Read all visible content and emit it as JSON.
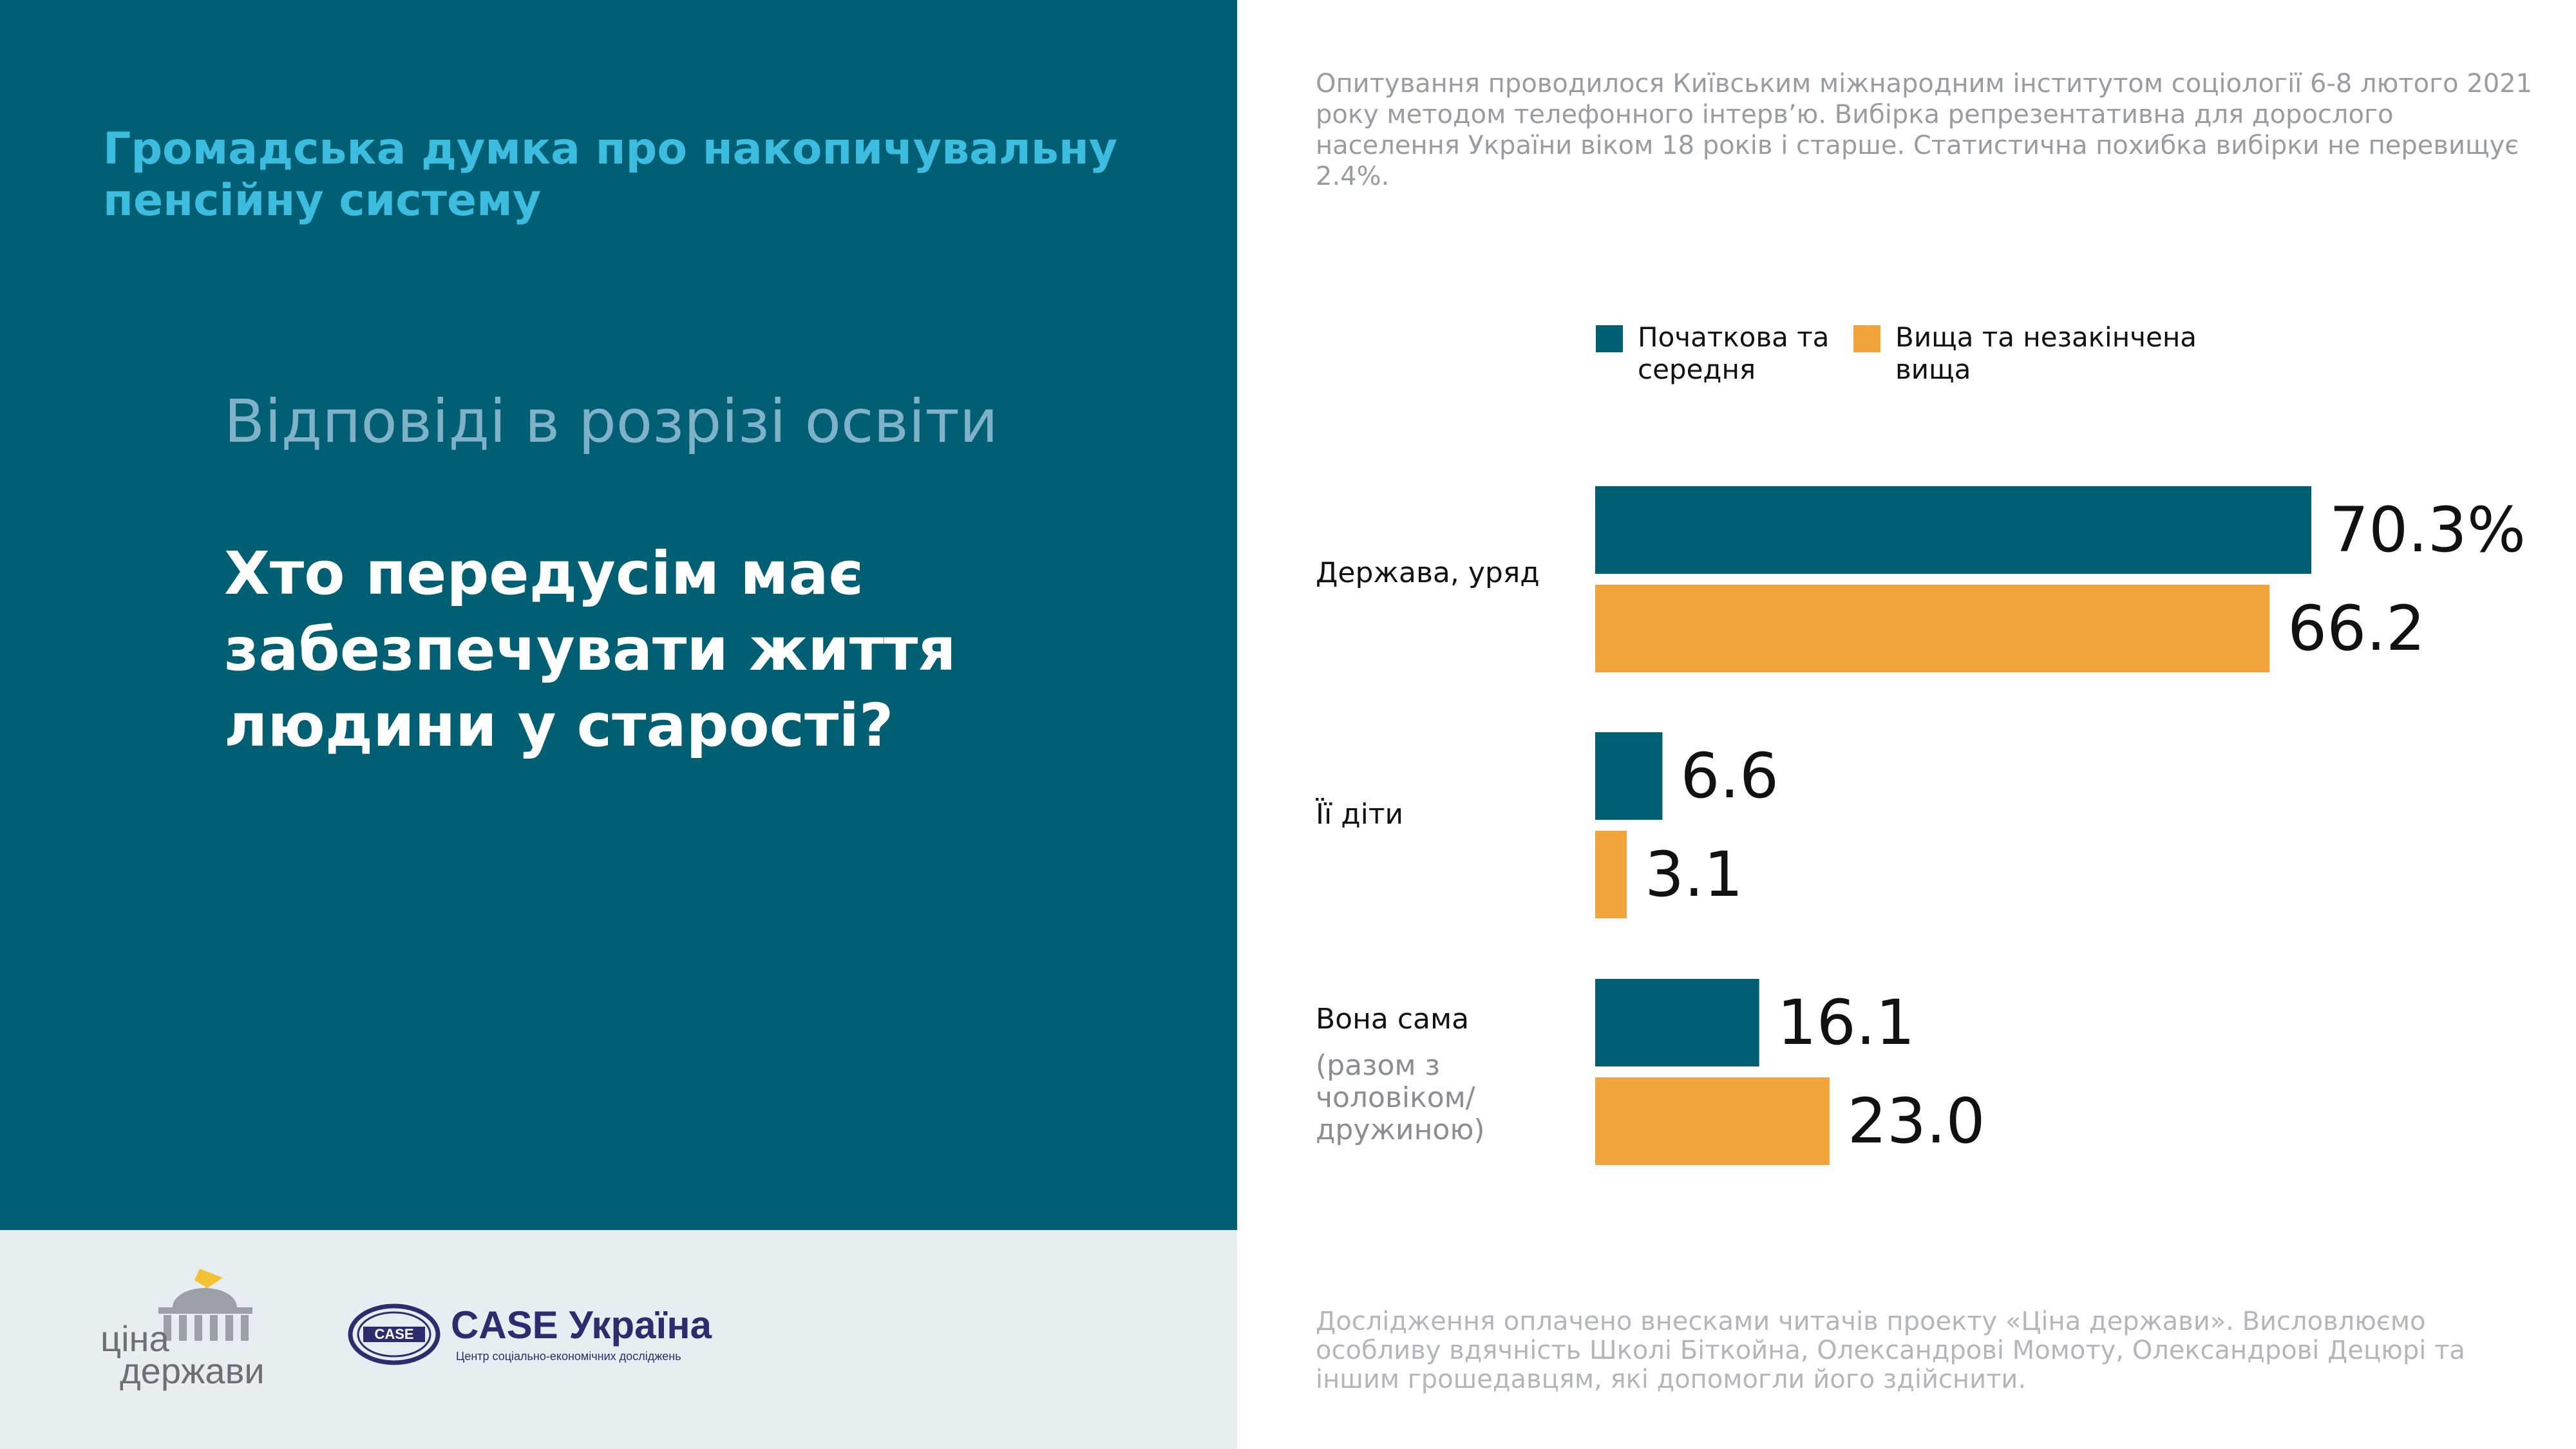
{
  "header": {
    "title": "Громадська думка про накопичувальну пенсійну систему",
    "subtitle": "Відповіді в розрізі освіти",
    "question": "Хто передусім має забезпечувати життя людини у старості?"
  },
  "notes": {
    "methodology": "Опитування проводилося Київським міжнародним інститутом соціології 6-8 лютого 2021 року методом телефонного інтерв’ю. Вибірка репрезентативна для дорослого населення України віком 18 років і старше. Статистична похибка вибірки не перевищує 2.4%.",
    "acknowledgement": "Дослідження оплачено внесками читачів проекту «Ціна держави». Висловлюємо особливу вдячність Школі Біткойна, Олександрові Момоту, Олександрові Децюрі та іншим грошедавцям, які допомогли його здійснити."
  },
  "logos": {
    "cina_line1": "ціна",
    "cina_line2": "держави",
    "case_badge": "CASE",
    "case_name": "CASE Україна",
    "case_tagline": "Центр соціально-економічних досліджень"
  },
  "colors": {
    "panel": "#005f73",
    "series_a": "#005f73",
    "series_b": "#f2a33a",
    "title_accent": "#3cbcdf"
  },
  "chart_data": {
    "type": "bar",
    "orientation": "horizontal",
    "categories": [
      "Держава, уряд",
      "Її діти",
      "Вона сама"
    ],
    "category_notes": [
      "",
      "",
      "(разом з чоловіком/ дружиною)"
    ],
    "series": [
      {
        "name": "Початкова та середня",
        "values": [
          70.3,
          6.6,
          16.1
        ],
        "labels": [
          "70.3%",
          "6.6",
          "16.1"
        ]
      },
      {
        "name": "Вища та незакінчена вища",
        "values": [
          66.2,
          3.1,
          23.0
        ],
        "labels": [
          "66.2",
          "3.1",
          "23.0"
        ]
      }
    ],
    "unit": "%",
    "xlim": [
      0,
      70.3
    ],
    "legend_position": "top",
    "grid": false
  }
}
